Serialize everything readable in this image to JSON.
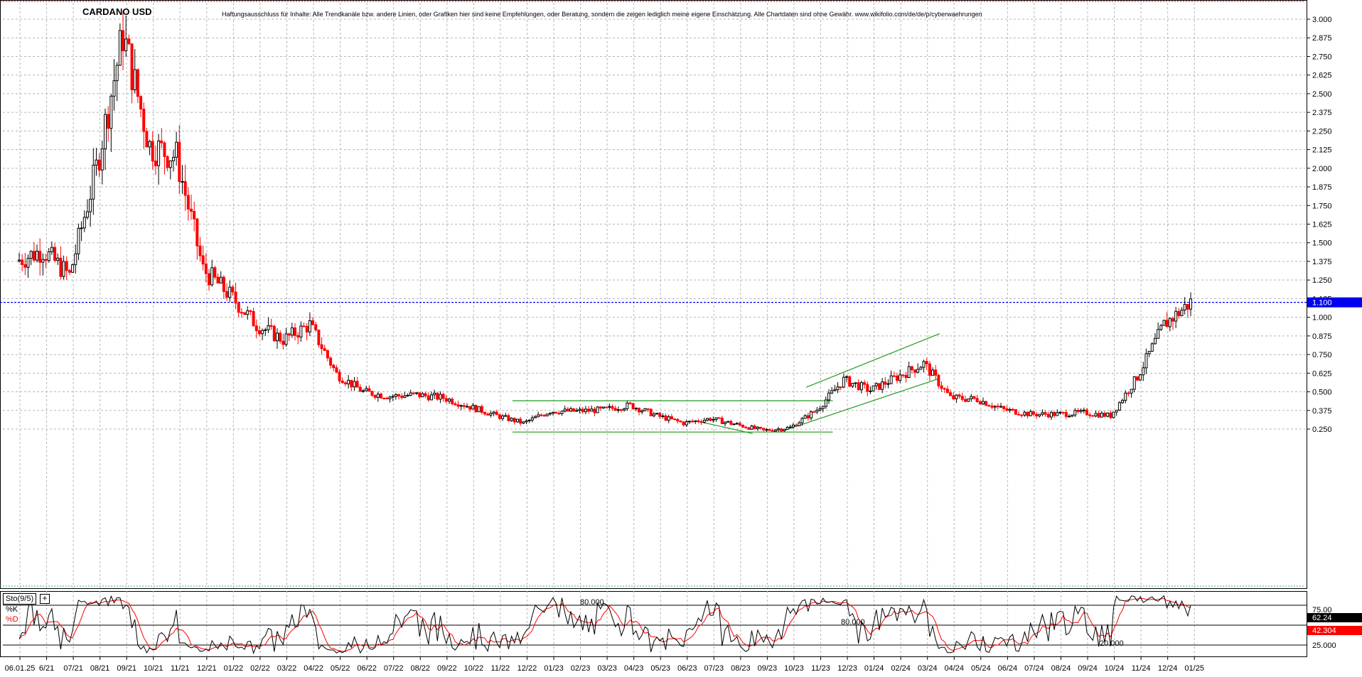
{
  "header": {
    "title": "CARDANO USD",
    "disclaimer": "Haftungsausschluss für Inhalte: Alle Trendkanäle bzw. andere Linien, oder Grafiken hier sind keine Empfehlungen, oder Beratung, sondern die zeigen lediglich meine eigene Einschätzung. Alle Chartdaten sind ohne Gewähr.  www.wikifolio.com/de/de/p/cyberwaehrungen"
  },
  "price_axis": {
    "ticks": [
      "3.000",
      "2.875",
      "2.750",
      "2.625",
      "2.500",
      "2.375",
      "2.250",
      "2.125",
      "2.000",
      "1.875",
      "1.750",
      "1.625",
      "1.500",
      "1.375",
      "1.250",
      "1.125",
      "1.000",
      "0.875",
      "0.750",
      "0.625",
      "0.500",
      "0.375",
      "0.250"
    ],
    "current_value": 1.1,
    "current_label": "1.100"
  },
  "time_axis": {
    "labels": [
      "06.01.25",
      "6/21",
      "07/21",
      "08/21",
      "09/21",
      "10/21",
      "11/21",
      "12/21",
      "01/22",
      "02/22",
      "03/22",
      "04/22",
      "05/22",
      "06/22",
      "07/22",
      "08/22",
      "09/22",
      "10/22",
      "11/22",
      "12/22",
      "01/23",
      "02/23",
      "03/23",
      "04/23",
      "05/23",
      "06/23",
      "07/23",
      "08/23",
      "09/23",
      "10/23",
      "11/23",
      "12/23",
      "01/24",
      "02/24",
      "03/24",
      "04/24",
      "05/24",
      "06/24",
      "07/24",
      "08/24",
      "09/24",
      "10/24",
      "11/24",
      "12/24",
      "01/25"
    ]
  },
  "indicator": {
    "name": "Sto(9/5)",
    "k_label": "%K",
    "d_label": "%D",
    "k_value": "62.24",
    "d_value": "42.304",
    "level_high_label": "80.000",
    "level_high_label_2": "80.000",
    "level_low_label": "20.000",
    "axis_75": "75.00",
    "axis_25": "25.000",
    "colors": {
      "k": "#000000",
      "d": "#ff0000"
    }
  },
  "colors": {
    "up_candle": "#000000",
    "down_candle": "#ff0000",
    "trend_lines": "#1e9a1e",
    "current_price_line": "#0000ff",
    "current_price_badge": "#0000ee",
    "k_badge": "#000000",
    "d_badge": "#ff0000"
  },
  "chart_data": {
    "type": "candlestick",
    "title": "CARDANO USD",
    "ylim": [
      0.18,
      3.05
    ],
    "grid": true,
    "x": [
      "2021-06",
      "2021-07",
      "2021-08",
      "2021-09",
      "2021-10",
      "2021-11",
      "2021-12",
      "2022-01",
      "2022-02",
      "2022-03",
      "2022-04",
      "2022-05",
      "2022-06",
      "2022-07",
      "2022-08",
      "2022-09",
      "2022-10",
      "2022-11",
      "2022-12",
      "2023-01",
      "2023-02",
      "2023-03",
      "2023-04",
      "2023-05",
      "2023-06",
      "2023-07",
      "2023-08",
      "2023-09",
      "2023-10",
      "2023-11",
      "2023-12",
      "2024-01",
      "2024-02",
      "2024-03",
      "2024-04",
      "2024-05",
      "2024-06",
      "2024-07",
      "2024-08",
      "2024-09",
      "2024-10",
      "2024-11",
      "2024-12",
      "2025-01"
    ],
    "close": [
      1.45,
      1.28,
      2.0,
      2.9,
      2.15,
      2.08,
      1.32,
      1.15,
      0.95,
      0.85,
      0.95,
      0.62,
      0.5,
      0.47,
      0.48,
      0.46,
      0.4,
      0.34,
      0.29,
      0.37,
      0.37,
      0.38,
      0.41,
      0.34,
      0.29,
      0.32,
      0.28,
      0.24,
      0.26,
      0.38,
      0.58,
      0.51,
      0.6,
      0.69,
      0.46,
      0.45,
      0.38,
      0.35,
      0.35,
      0.36,
      0.34,
      0.6,
      0.95,
      1.1
    ],
    "trend_lines": [
      {
        "name": "upper channel",
        "points": [
          [
            "2023-11",
            0.53
          ],
          [
            "2024-04",
            0.89
          ]
        ]
      },
      {
        "name": "lower channel",
        "points": [
          [
            "2023-10",
            0.23
          ],
          [
            "2024-04",
            0.59
          ]
        ]
      },
      {
        "name": "range top",
        "points": [
          [
            "2022-12",
            0.44
          ],
          [
            "2023-12",
            0.44
          ]
        ]
      },
      {
        "name": "range bottom",
        "points": [
          [
            "2022-12",
            0.23
          ],
          [
            "2023-12",
            0.23
          ]
        ]
      },
      {
        "name": "wedge",
        "points": [
          [
            "2023-07",
            0.3
          ],
          [
            "2023-09",
            0.22
          ]
        ]
      }
    ],
    "stochastic": {
      "name": "Sto(9/5)",
      "k_last": 62.24,
      "d_last": 42.304,
      "levels": [
        80,
        20
      ]
    }
  }
}
